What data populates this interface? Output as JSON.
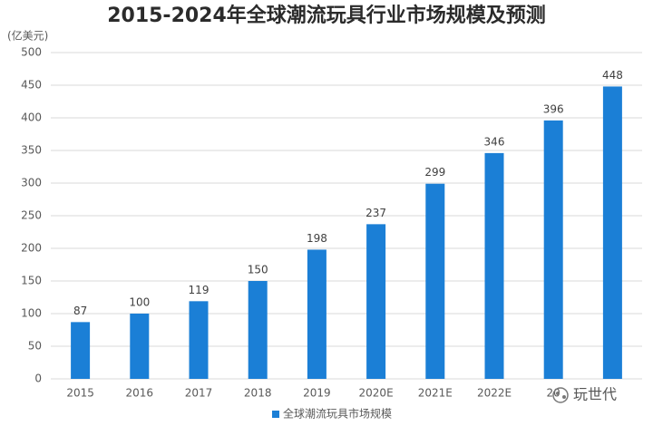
{
  "chart_data": {
    "type": "bar",
    "title": "2015-2024年全球潮流玩具行业市场规模及预测",
    "y_axis_label": "(亿美元)",
    "categories": [
      "2015",
      "2016",
      "2017",
      "2018",
      "2019",
      "2020E",
      "2021E",
      "2022E",
      "20",
      null
    ],
    "series": [
      {
        "name": "全球潮流玩具市场规模",
        "color": "#1b7fd6",
        "values": [
          87,
          100,
          119,
          150,
          198,
          237,
          299,
          346,
          396,
          448
        ]
      }
    ],
    "ylim": [
      0,
      500
    ],
    "yticks": [
      0,
      50,
      100,
      150,
      200,
      250,
      300,
      350,
      400,
      450,
      500
    ],
    "grid": true,
    "legend": "bottom",
    "watermark": "玩世代"
  }
}
